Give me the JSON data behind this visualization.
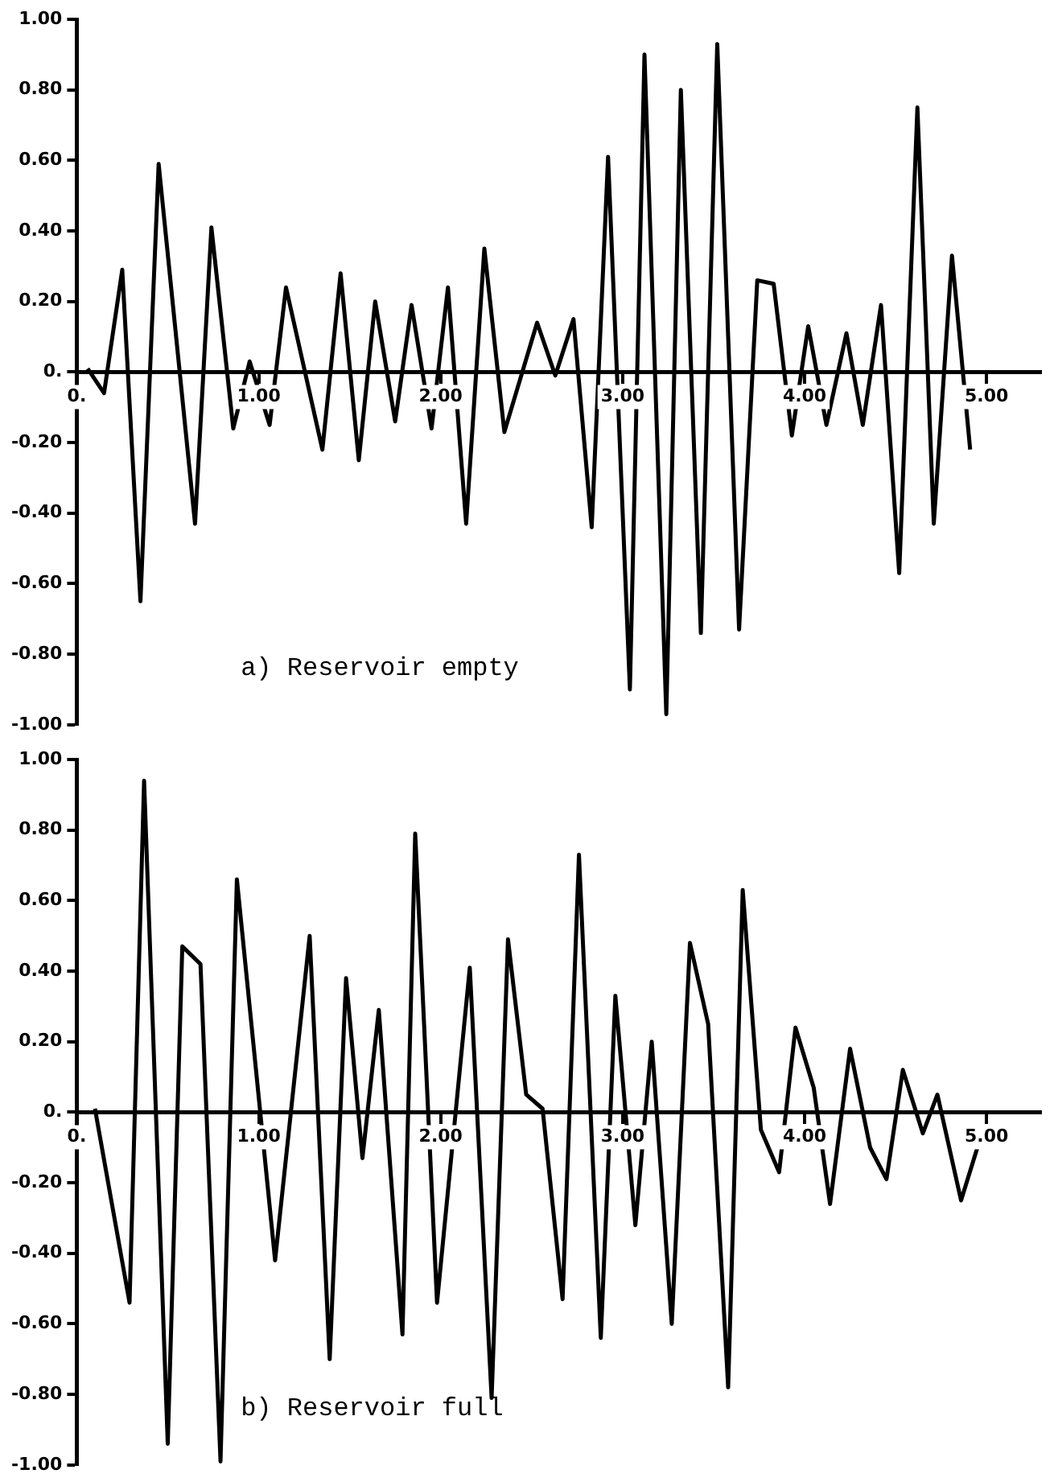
{
  "chart_data": [
    {
      "type": "line",
      "annotations": [
        "a) Reservoir empty"
      ],
      "marker": "none",
      "line_style": "solid",
      "grid": false,
      "x": [
        0.06,
        0.15,
        0.25,
        0.35,
        0.45,
        0.65,
        0.74,
        0.86,
        0.95,
        1.06,
        1.15,
        1.35,
        1.45,
        1.55,
        1.64,
        1.75,
        1.84,
        1.95,
        2.04,
        2.14,
        2.24,
        2.35,
        2.53,
        2.63,
        2.73,
        2.83,
        2.92,
        3.04,
        3.12,
        3.24,
        3.32,
        3.43,
        3.52,
        3.64,
        3.74,
        3.83,
        3.93,
        4.02,
        4.12,
        4.23,
        4.32,
        4.42,
        4.52,
        4.62,
        4.71,
        4.81,
        4.91
      ],
      "values": [
        0.01,
        -0.06,
        0.29,
        -0.65,
        0.59,
        -0.43,
        0.41,
        -0.16,
        0.03,
        -0.15,
        0.24,
        -0.22,
        0.28,
        -0.25,
        0.2,
        -0.14,
        0.19,
        -0.16,
        0.24,
        -0.43,
        0.35,
        -0.17,
        0.14,
        -0.01,
        0.15,
        -0.44,
        0.61,
        -0.9,
        0.9,
        -0.97,
        0.8,
        -0.74,
        0.93,
        -0.73,
        0.26,
        0.25,
        -0.18,
        0.13,
        -0.15,
        0.11,
        -0.15,
        0.19,
        -0.57,
        0.75,
        -0.43,
        0.33,
        -0.22
      ],
      "xlim": [
        0,
        5.3
      ],
      "xticks": [
        {
          "value": 0,
          "label": "0."
        },
        {
          "value": 1,
          "label": "1.00"
        },
        {
          "value": 2,
          "label": "2.00"
        },
        {
          "value": 3,
          "label": "3.00"
        },
        {
          "value": 4,
          "label": "4.00"
        },
        {
          "value": 5,
          "label": "5.00"
        }
      ],
      "ylim": [
        -1,
        1
      ],
      "yticks": [
        {
          "value": -1,
          "label": "-1.00"
        },
        {
          "value": -0.8,
          "label": "-0.80"
        },
        {
          "value": -0.6,
          "label": "-0.60"
        },
        {
          "value": -0.4,
          "label": "-0.40"
        },
        {
          "value": -0.2,
          "label": "-0.20"
        },
        {
          "value": 0,
          "label": "0."
        },
        {
          "value": 0.2,
          "label": "0.20"
        },
        {
          "value": 0.4,
          "label": "0.40"
        },
        {
          "value": 0.6,
          "label": "0.60"
        },
        {
          "value": 0.8,
          "label": "0.80"
        },
        {
          "value": 1,
          "label": "1.00"
        }
      ]
    },
    {
      "type": "line",
      "annotations": [
        "b) Reservoir full"
      ],
      "marker": "none",
      "line_style": "solid",
      "grid": false,
      "x": [
        0.1,
        0.29,
        0.37,
        0.5,
        0.58,
        0.68,
        0.79,
        0.88,
        1.09,
        1.28,
        1.39,
        1.48,
        1.57,
        1.66,
        1.79,
        1.86,
        1.98,
        2.16,
        2.28,
        2.37,
        2.47,
        2.56,
        2.67,
        2.76,
        2.88,
        2.96,
        3.07,
        3.16,
        3.27,
        3.37,
        3.47,
        3.58,
        3.66,
        3.76,
        3.86,
        3.95,
        4.05,
        4.14,
        4.25,
        4.36,
        4.45,
        4.54,
        4.65,
        4.73,
        4.86,
        4.95
      ],
      "values": [
        0.01,
        -0.54,
        0.94,
        -0.94,
        0.47,
        0.42,
        -0.99,
        0.66,
        -0.42,
        0.5,
        -0.7,
        0.38,
        -0.13,
        0.29,
        -0.63,
        0.79,
        -0.54,
        0.41,
        -0.81,
        0.49,
        0.05,
        0.01,
        -0.53,
        0.73,
        -0.64,
        0.33,
        -0.32,
        0.2,
        -0.6,
        0.48,
        0.25,
        -0.78,
        0.63,
        -0.05,
        -0.17,
        0.24,
        0.07,
        -0.26,
        0.18,
        -0.1,
        -0.19,
        0.12,
        -0.06,
        0.05,
        -0.25,
        -0.1
      ],
      "xlim": [
        0,
        5.3
      ],
      "xticks": [
        {
          "value": 0,
          "label": "0."
        },
        {
          "value": 1,
          "label": "1.00"
        },
        {
          "value": 2,
          "label": "2.00"
        },
        {
          "value": 3,
          "label": "3.00"
        },
        {
          "value": 4,
          "label": "4.00"
        },
        {
          "value": 5,
          "label": "5.00"
        }
      ],
      "ylim": [
        -1,
        1
      ],
      "yticks": [
        {
          "value": -1,
          "label": "-1.00"
        },
        {
          "value": -0.8,
          "label": "-0.80"
        },
        {
          "value": -0.6,
          "label": "-0.60"
        },
        {
          "value": -0.4,
          "label": "-0.40"
        },
        {
          "value": -0.2,
          "label": "-0.20"
        },
        {
          "value": 0,
          "label": "0."
        },
        {
          "value": 0.2,
          "label": "0.20"
        },
        {
          "value": 0.4,
          "label": "0.40"
        },
        {
          "value": 0.6,
          "label": "0.60"
        },
        {
          "value": 0.8,
          "label": "0.80"
        },
        {
          "value": 1,
          "label": "1.00"
        }
      ]
    }
  ]
}
